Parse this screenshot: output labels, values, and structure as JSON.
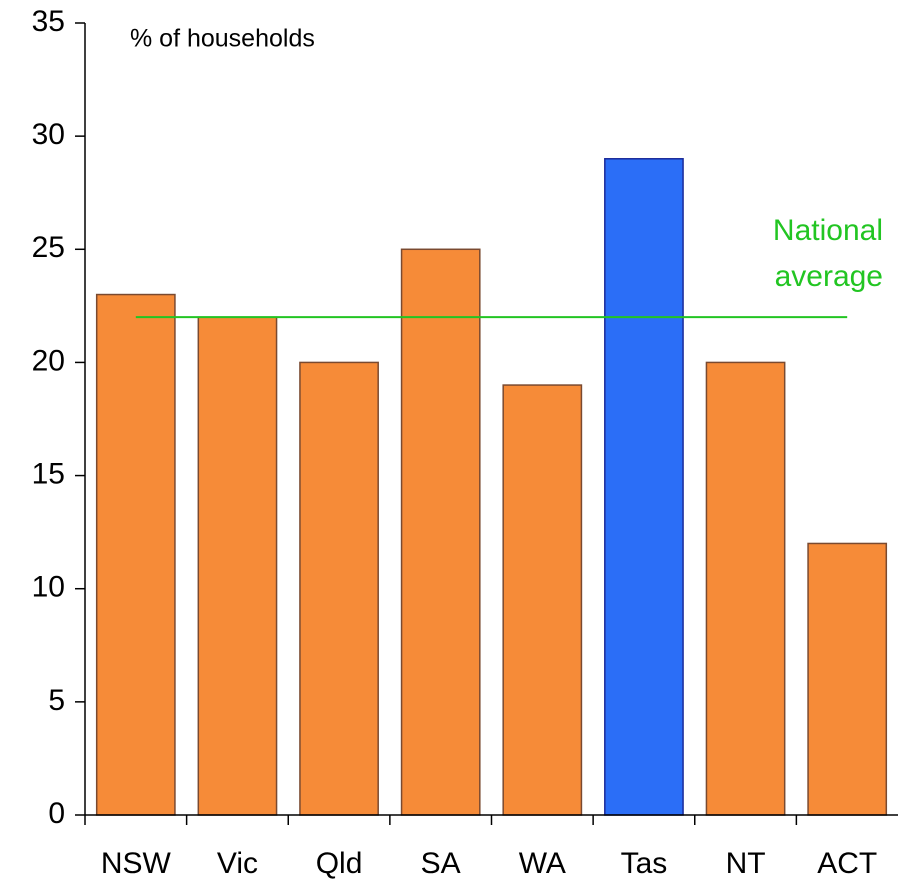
{
  "chart_data": {
    "type": "bar",
    "y_label": "% of households",
    "categories": [
      "NSW",
      "Vic",
      "Qld",
      "SA",
      "WA",
      "Tas",
      "NT",
      "ACT"
    ],
    "values": [
      23,
      22,
      20,
      25,
      19,
      29,
      20,
      12
    ],
    "colors": [
      "#f68b38",
      "#f68b38",
      "#f68b38",
      "#f68b38",
      "#f68b38",
      "#2b6ef7",
      "#f68b38",
      "#f68b38"
    ],
    "reference_line": {
      "name": [
        "National",
        "average"
      ],
      "value": 22,
      "color": "#22c522"
    },
    "ylim": [
      0,
      35
    ],
    "yticks": [
      0,
      5,
      10,
      15,
      20,
      25,
      30,
      35
    ],
    "grid": false
  }
}
